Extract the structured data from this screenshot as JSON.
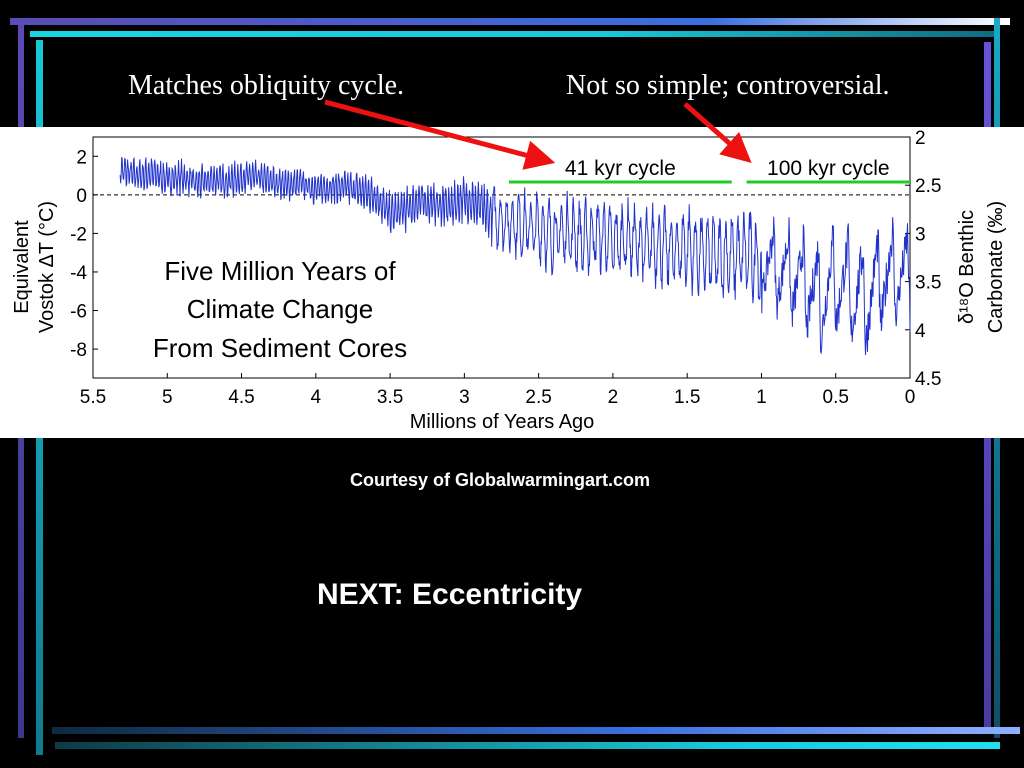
{
  "slide": {
    "caption_left": "Matches obliquity cycle.",
    "caption_right": "Not so simple; controversial.",
    "courtesy": "Courtesy of Globalwarmingart.com",
    "next": "NEXT: Eccentricity"
  },
  "colors": {
    "background": "#000000",
    "series_line": "#2233cc",
    "cycle_bars": "#22cc22",
    "arrows": "#ee1111",
    "accent_cyan": "#19c8d8",
    "accent_violet": "#6a52c8"
  },
  "chart_data": {
    "type": "line",
    "title_lines": [
      "Five Million Years of",
      "Climate Change",
      "From Sediment Cores"
    ],
    "xlabel": "Millions of Years Ago",
    "ylabel_left_lines": [
      "Equivalent",
      "Vostok ΔT (°C)"
    ],
    "ylabel_right_lines": [
      "δ¹⁸O Benthic",
      "Carbonate (‰)"
    ],
    "xlim": [
      5.5,
      0
    ],
    "ylim_left": [
      -9.5,
      3
    ],
    "ylim_right": [
      4.5,
      2
    ],
    "x_ticks": [
      "5.5",
      "5",
      "4.5",
      "4",
      "3.5",
      "3",
      "2.5",
      "2",
      "1.5",
      "1",
      "0.5",
      "0"
    ],
    "y_ticks_left": [
      "2",
      "0",
      "-2",
      "-4",
      "-6",
      "-8"
    ],
    "y_ticks_right": [
      "2",
      "2.5",
      "3",
      "3.5",
      "4",
      "4.5"
    ],
    "reference_line_y": 0,
    "annotations": [
      {
        "label": "41 kyr cycle",
        "x_start": 2.7,
        "x_end": 1.2
      },
      {
        "label": "100 kyr cycle",
        "x_start": 1.1,
        "x_end": 0
      }
    ],
    "series": [
      {
        "x": [
          5.32,
          5.2,
          5.1,
          5.0,
          4.9,
          4.8,
          4.7,
          4.6,
          4.5,
          4.4,
          4.3,
          4.2,
          4.1,
          4.0,
          3.9,
          3.8,
          3.7,
          3.6,
          3.5,
          3.4,
          3.3,
          3.2,
          3.1,
          3.0,
          2.9,
          2.8,
          2.7,
          2.6,
          2.5,
          2.4,
          2.3,
          2.2,
          2.1,
          2.0,
          1.9,
          1.8,
          1.7,
          1.6,
          1.5,
          1.4,
          1.3,
          1.2,
          1.1,
          1.0,
          0.9,
          0.8,
          0.7,
          0.6,
          0.5,
          0.4,
          0.3,
          0.2,
          0.1,
          0.0
        ],
        "y": [
          1.3,
          1.0,
          1.1,
          0.8,
          0.9,
          0.6,
          0.8,
          0.7,
          0.9,
          0.9,
          0.7,
          0.5,
          0.6,
          0.3,
          0.4,
          0.4,
          0.2,
          -0.1,
          -1.0,
          -0.8,
          -0.3,
          -0.5,
          -0.6,
          -0.2,
          -0.6,
          -1.2,
          -1.4,
          -1.6,
          -1.8,
          -2.1,
          -1.9,
          -2.3,
          -2.0,
          -2.5,
          -2.2,
          -2.7,
          -2.6,
          -2.9,
          -2.7,
          -3.1,
          -3.2,
          -3.2,
          -3.0,
          -3.5,
          -3.8,
          -4.2,
          -4.8,
          -5.2,
          -4.4,
          -5.0,
          -5.4,
          -4.6,
          -4.0,
          -4.5
        ],
        "amplitude": [
          1.3,
          1.3,
          1.4,
          1.3,
          1.4,
          1.3,
          1.4,
          1.3,
          1.4,
          1.3,
          1.4,
          1.3,
          1.3,
          1.3,
          1.3,
          1.4,
          1.4,
          1.5,
          1.7,
          1.7,
          1.6,
          1.6,
          1.7,
          1.8,
          2.0,
          2.4,
          2.6,
          2.8,
          2.9,
          3.0,
          3.0,
          3.1,
          3.1,
          3.2,
          3.1,
          3.2,
          3.2,
          3.3,
          3.3,
          3.4,
          3.4,
          3.4,
          3.6,
          3.8,
          4.0,
          4.4,
          4.7,
          5.0,
          4.9,
          4.9,
          5.2,
          5.0,
          4.6,
          4.7
        ]
      }
    ]
  }
}
